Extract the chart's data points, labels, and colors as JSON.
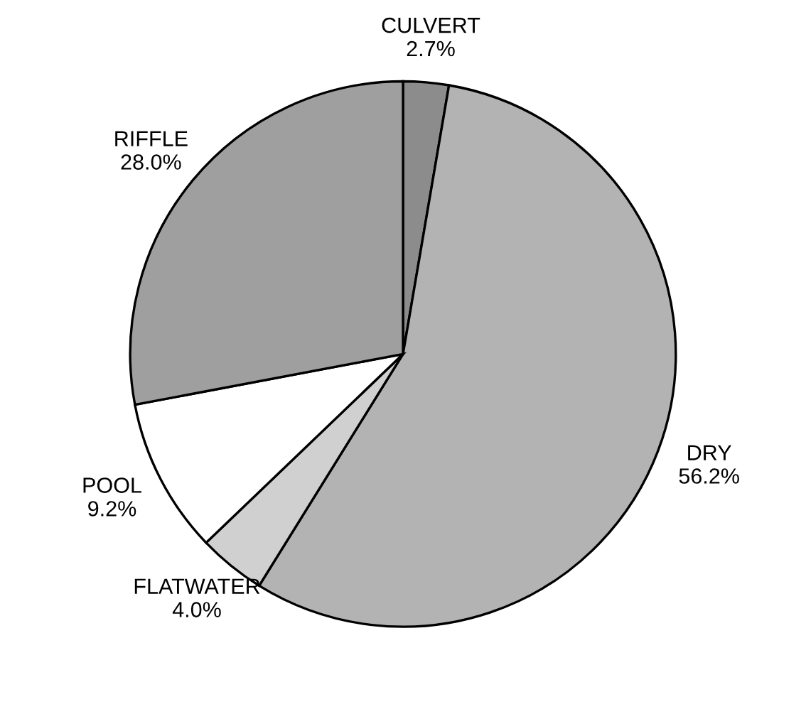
{
  "chart_data": {
    "type": "pie",
    "categories": [
      "CULVERT",
      "DRY",
      "FLATWATER",
      "POOL",
      "RIFFLE"
    ],
    "values": [
      2.7,
      56.2,
      4.0,
      9.2,
      28.0
    ],
    "value_labels": [
      "2.7%",
      "56.2%",
      "4.0%",
      "9.2%",
      "28.0%"
    ],
    "colors": [
      "#8c8c8c",
      "#b3b3b3",
      "#d0d0d0",
      "#ffffff",
      "#9f9f9f"
    ],
    "legend": false
  }
}
